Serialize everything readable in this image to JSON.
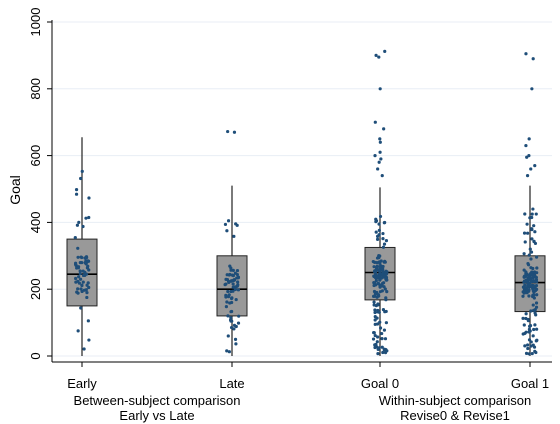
{
  "chart_data": {
    "type": "box",
    "ylabel": "Goal",
    "ylim": [
      0,
      1000
    ],
    "yticks": [
      0,
      200,
      400,
      600,
      800,
      1000
    ],
    "categories": [
      "Early",
      "Late",
      "Goal 0",
      "Goal 1"
    ],
    "groups": [
      {
        "line1": "Between-subject comparison",
        "line2": "Early vs Late"
      },
      {
        "line1": "Within-subject comparison",
        "line2": "Revise0 & Revise1"
      }
    ],
    "boxes": [
      {
        "category": "Early",
        "min": 0,
        "q1": 150,
        "median": 245,
        "q3": 350,
        "max": 655
      },
      {
        "category": "Late",
        "min": 0,
        "q1": 120,
        "median": 200,
        "q3": 300,
        "max": 510
      },
      {
        "category": "Goal 0",
        "min": 0,
        "q1": 168,
        "median": 250,
        "q3": 325,
        "max": 505
      },
      {
        "category": "Goal 1",
        "min": 0,
        "q1": 133,
        "median": 220,
        "q3": 300,
        "max": 510
      }
    ],
    "outliers": [
      {
        "category": "Late",
        "values": [
          670,
          672
        ]
      },
      {
        "category": "Goal 0",
        "values": [
          540,
          560,
          580,
          590,
          600,
          610,
          640,
          650,
          680,
          700,
          800,
          895,
          900,
          912
        ]
      },
      {
        "category": "Goal 1",
        "values": [
          540,
          560,
          570,
          595,
          600,
          630,
          650,
          800,
          890,
          905
        ]
      }
    ],
    "point_counts": {
      "Early": 70,
      "Late": 75,
      "Goal 0": 170,
      "Goal 1": 160
    },
    "colors": {
      "box_fill": "#999999",
      "box_edge": "#222222",
      "point": "#1f4e79",
      "axis": "#000000",
      "grid": "#e8eef5"
    },
    "grid": true
  }
}
